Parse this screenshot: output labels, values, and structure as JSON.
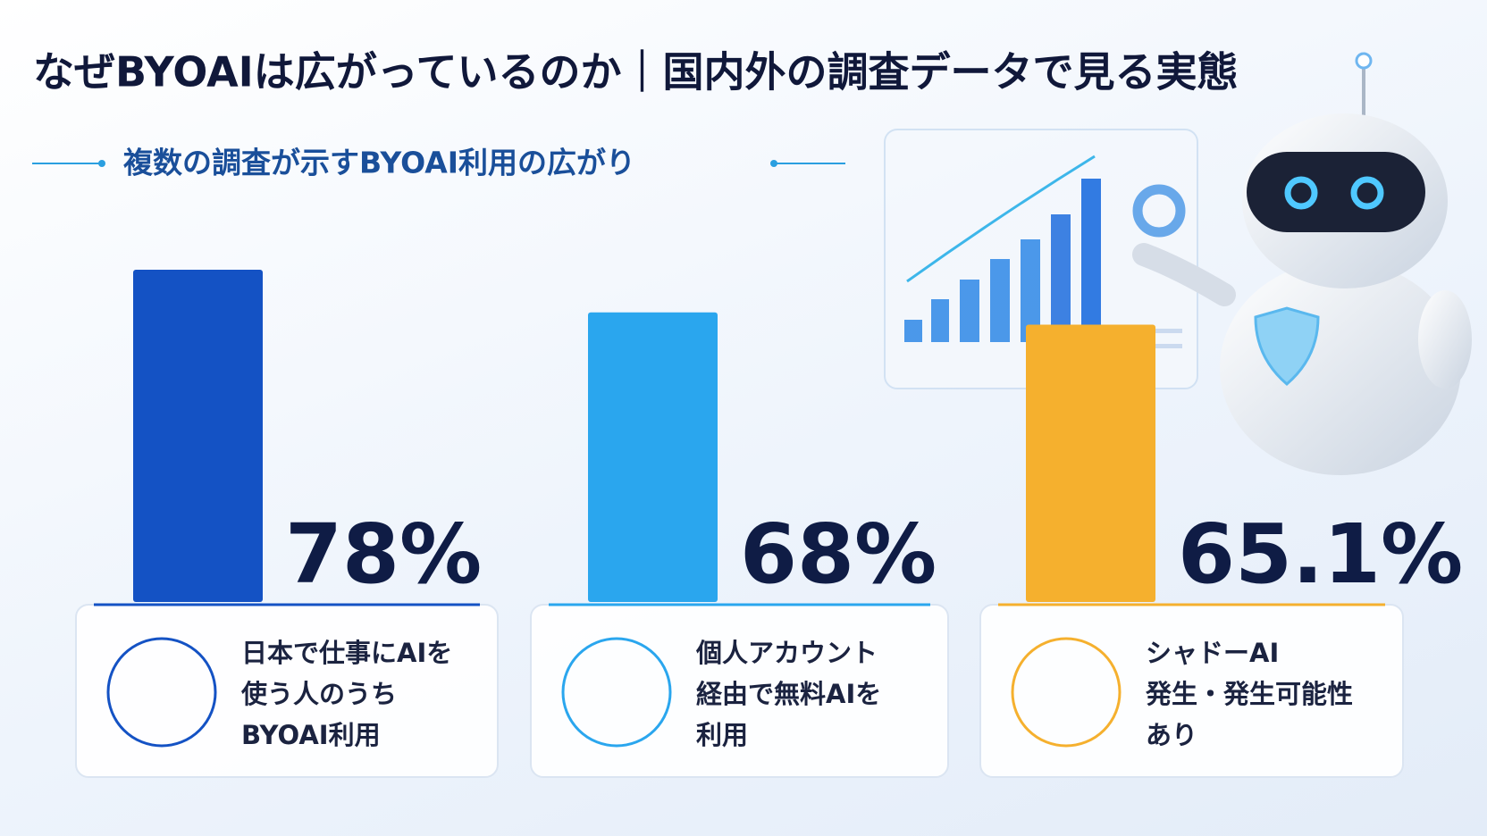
{
  "chart_data": {
    "type": "bar",
    "title": "なぜBYOAIは広がっているのか｜国内外の調査データで見る実態",
    "subtitle": "複数の調査が示すBYOAI利用の広がり",
    "categories": [
      "日本で仕事にAIを\n使う人のうち\nBYOAI利用",
      "個人アカウント\n経由で無料AIを\n利用",
      "シャドーAI\n発生・発生可能性\nあり"
    ],
    "values": [
      78,
      68,
      65.1
    ],
    "value_labels": [
      "78%",
      "68%",
      "65.1%"
    ],
    "colors": [
      "#1452c4",
      "#2aa6ee",
      "#f5b02e"
    ]
  }
}
